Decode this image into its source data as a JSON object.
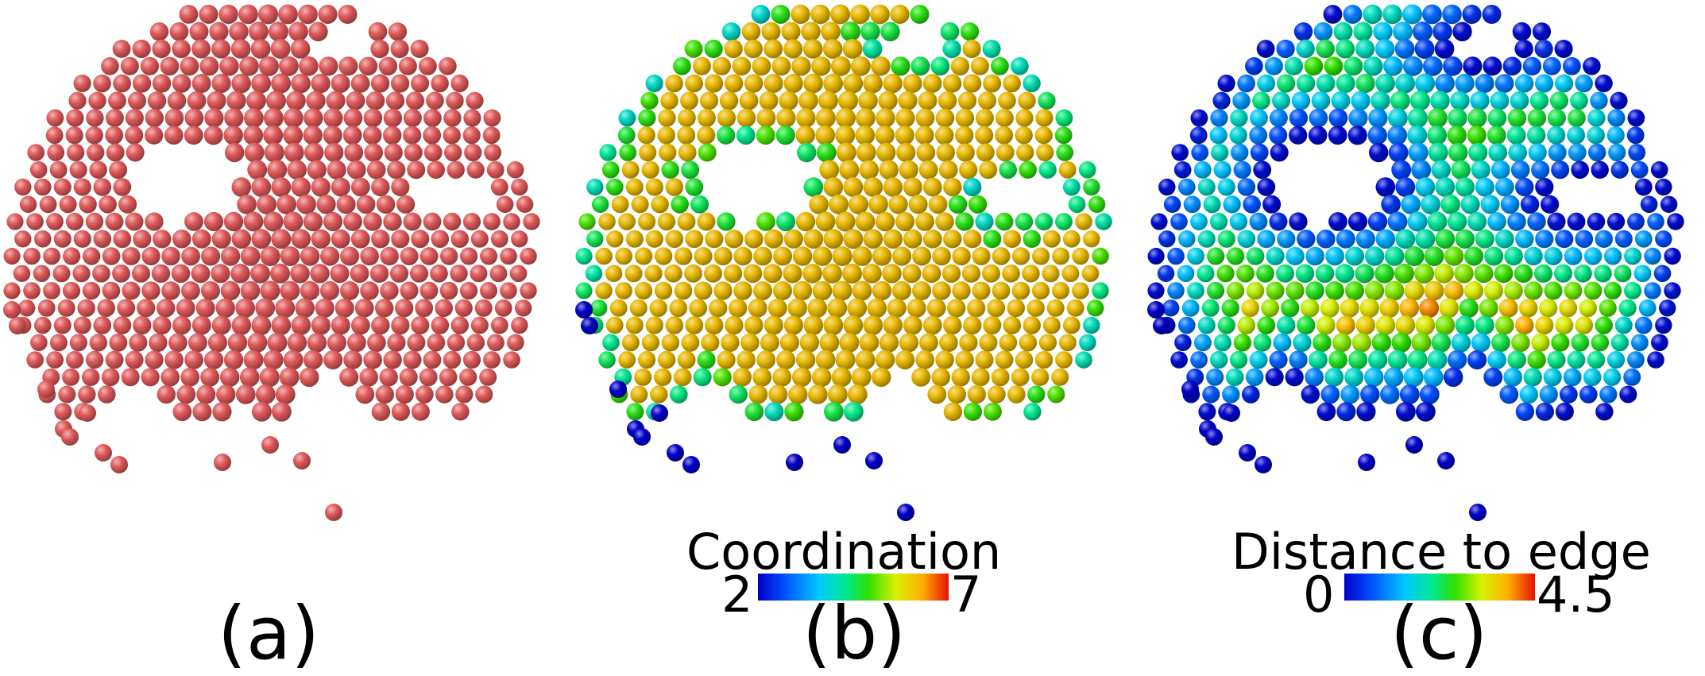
{
  "panels": [
    {
      "label": "(a)",
      "coloring": "uniform",
      "base_color": "#e05a5a"
    },
    {
      "label": "(b)",
      "coloring": "coordination",
      "colorbar": {
        "title": "Coordination",
        "min": "2",
        "max": "7"
      }
    },
    {
      "label": "(c)",
      "coloring": "distance",
      "colorbar": {
        "title": "Distance  to  edge",
        "min": "0",
        "max": "4.5"
      }
    }
  ],
  "colormap": [
    "#0000c8",
    "#0050ff",
    "#00c8ff",
    "#00e890",
    "#30e000",
    "#d8f000",
    "#ffb000",
    "#e81000"
  ]
}
